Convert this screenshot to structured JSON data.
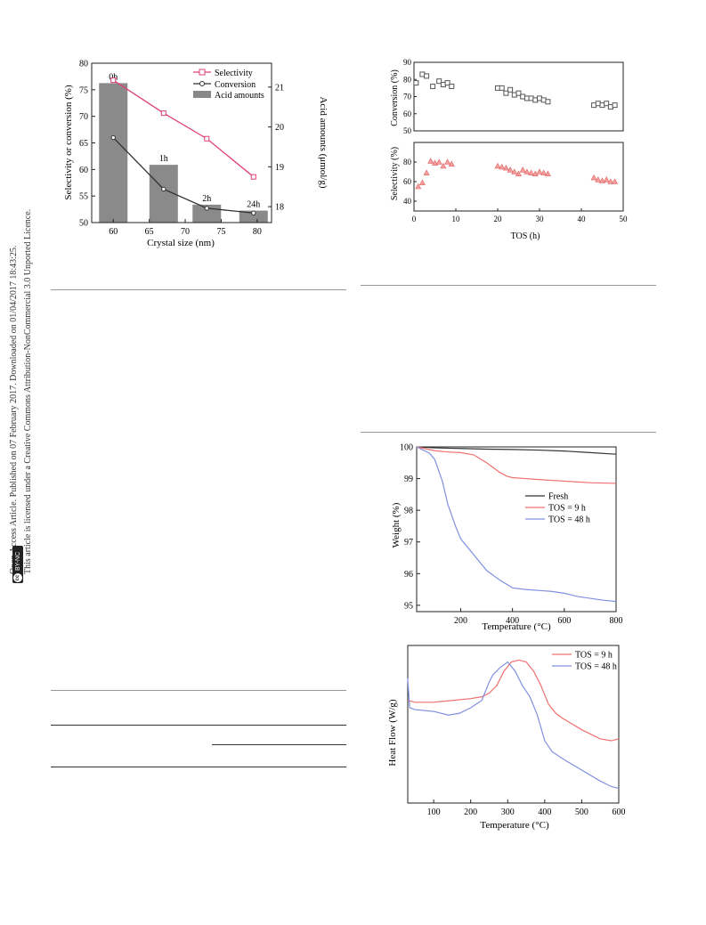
{
  "sidebar": {
    "line1": "Open Access Article. Published on 07 February 2017. Downloaded on 01/04/2017 18:43:25.",
    "line2": "This article is licensed under a Creative Commons Attribution-NonCommercial 3.0 Unported Licence.",
    "badge": "BY-NC",
    "badge_cc": "cc"
  },
  "fig_a": {
    "chart_data": {
      "type": "bar",
      "xlabel": "Crystal size (nm)",
      "ylabel": "Selectivity or conversion (%)",
      "y2label": "Acid amounts (μmol/g)",
      "xlim": [
        57,
        82
      ],
      "ylim": [
        50,
        80
      ],
      "y2lim": [
        17.6,
        21.6
      ],
      "xticks": [
        "60",
        "65",
        "70",
        "75",
        "80"
      ],
      "yticks": [
        "50",
        "55",
        "60",
        "65",
        "70",
        "75",
        "80"
      ],
      "y2ticks": [
        "18",
        "19",
        "20",
        "21"
      ],
      "legend": [
        "Selectivity",
        "Conversion",
        "Acid amounts"
      ],
      "bars": {
        "name": "Acid amounts",
        "x": [
          60,
          67,
          73,
          79.5
        ],
        "values": [
          21.1,
          19.05,
          18.05,
          17.9
        ],
        "labels": [
          "0h",
          "1h",
          "2h",
          "24h"
        ]
      },
      "series": [
        {
          "name": "Selectivity",
          "x": [
            60,
            67,
            73,
            79.5
          ],
          "values": [
            76.8,
            70.6,
            65.8,
            58.6
          ],
          "color": "#e0407a"
        },
        {
          "name": "Conversion",
          "x": [
            60,
            67,
            73,
            79.5
          ],
          "values": [
            66.0,
            56.3,
            52.7,
            51.8
          ],
          "color": "#333333"
        }
      ]
    }
  },
  "fig_b": {
    "chart_data": [
      {
        "type": "scatter",
        "ylabel": "Conversion (%)",
        "ylim": [
          50,
          90
        ],
        "yticks": [
          "50",
          "60",
          "70",
          "80",
          "90"
        ],
        "xlim": [
          0,
          50
        ],
        "x": [
          0.5,
          2,
          3,
          4.5,
          6,
          7,
          8,
          9,
          20,
          21,
          22,
          23,
          24,
          25,
          26,
          27,
          28,
          29,
          30,
          31,
          32,
          43,
          44,
          45,
          46,
          47,
          48
        ],
        "values": [
          78,
          83,
          82,
          76,
          79,
          77,
          78,
          76,
          75,
          75,
          72,
          74,
          71,
          72,
          70,
          69,
          69,
          68,
          69,
          68,
          67,
          65,
          66,
          65,
          66,
          64,
          65
        ]
      },
      {
        "type": "scatter",
        "ylabel": "Selectivity (%)",
        "xlabel": "TOS (h)",
        "ylim": [
          30,
          100
        ],
        "yticks": [
          "40",
          "60",
          "80"
        ],
        "xlim": [
          0,
          50
        ],
        "xticks": [
          "0",
          "10",
          "20",
          "30",
          "40",
          "50"
        ],
        "x": [
          1,
          2,
          3,
          4,
          5,
          6,
          7,
          8,
          9,
          20,
          21,
          22,
          23,
          24,
          25,
          26,
          27,
          28,
          29,
          30,
          31,
          32,
          43,
          44,
          45,
          46,
          47,
          48
        ],
        "values": [
          55,
          59,
          69,
          81,
          79,
          80,
          76,
          80,
          78,
          76,
          75,
          74,
          72,
          70,
          68,
          72,
          70,
          69,
          68,
          70,
          69,
          68,
          64,
          62,
          61,
          62,
          60,
          60
        ]
      }
    ]
  },
  "fig_c": {
    "chart_data": {
      "type": "line",
      "xlabel": "Temperature (°C)",
      "ylabel": "Weight (%)",
      "xlim": [
        30,
        800
      ],
      "ylim": [
        94.8,
        100
      ],
      "xticks": [
        "200",
        "400",
        "600",
        "800"
      ],
      "yticks": [
        "95",
        "96",
        "97",
        "98",
        "99",
        "100"
      ],
      "legend_position": "center-right",
      "series": [
        {
          "name": "Fresh",
          "color": "#333333",
          "x": [
            30,
            100,
            200,
            300,
            400,
            500,
            600,
            700,
            800
          ],
          "values": [
            100,
            99.97,
            99.95,
            99.93,
            99.92,
            99.9,
            99.87,
            99.82,
            99.77
          ]
        },
        {
          "name": "TOS = 9 h",
          "color": "#f07070",
          "x": [
            30,
            100,
            150,
            200,
            250,
            300,
            350,
            380,
            400,
            450,
            500,
            600,
            700,
            800
          ],
          "values": [
            100,
            99.88,
            99.84,
            99.82,
            99.75,
            99.5,
            99.2,
            99.07,
            99.03,
            99.0,
            98.97,
            98.92,
            98.87,
            98.85
          ]
        },
        {
          "name": "TOS = 48 h",
          "color": "#8090e0",
          "x": [
            30,
            80,
            100,
            130,
            150,
            180,
            200,
            250,
            300,
            350,
            400,
            450,
            500,
            550,
            600,
            650,
            700,
            750,
            800
          ],
          "values": [
            100,
            99.8,
            99.6,
            98.9,
            98.2,
            97.5,
            97.1,
            96.6,
            96.1,
            95.8,
            95.55,
            95.5,
            95.47,
            95.44,
            95.38,
            95.28,
            95.22,
            95.16,
            95.12
          ]
        }
      ]
    }
  },
  "fig_d": {
    "chart_data": {
      "type": "line",
      "xlabel": "Temperature (°C)",
      "ylabel": "Heat Flow (W/g)",
      "xlim": [
        30,
        600
      ],
      "xticks": [
        "100",
        "200",
        "300",
        "400",
        "500",
        "600"
      ],
      "legend_position": "top-right",
      "series": [
        {
          "name": "TOS = 9 h",
          "color": "#f07070",
          "x": [
            30,
            50,
            100,
            150,
            200,
            230,
            250,
            270,
            290,
            310,
            330,
            350,
            370,
            390,
            410,
            430,
            450,
            500,
            550,
            580,
            600
          ],
          "values": [
            0.78,
            0.775,
            0.775,
            0.78,
            0.785,
            0.79,
            0.8,
            0.82,
            0.86,
            0.885,
            0.89,
            0.885,
            0.86,
            0.82,
            0.77,
            0.745,
            0.73,
            0.7,
            0.675,
            0.67,
            0.675
          ]
        },
        {
          "name": "TOS = 48 h",
          "color": "#8090e0",
          "x": [
            30,
            35,
            50,
            100,
            140,
            170,
            200,
            230,
            250,
            260,
            280,
            300,
            320,
            340,
            360,
            380,
            400,
            420,
            450,
            500,
            550,
            580,
            600
          ],
          "values": [
            0.84,
            0.76,
            0.755,
            0.75,
            0.74,
            0.745,
            0.76,
            0.78,
            0.83,
            0.85,
            0.87,
            0.885,
            0.86,
            0.82,
            0.79,
            0.74,
            0.67,
            0.64,
            0.62,
            0.59,
            0.56,
            0.545,
            0.54
          ]
        }
      ]
    }
  }
}
